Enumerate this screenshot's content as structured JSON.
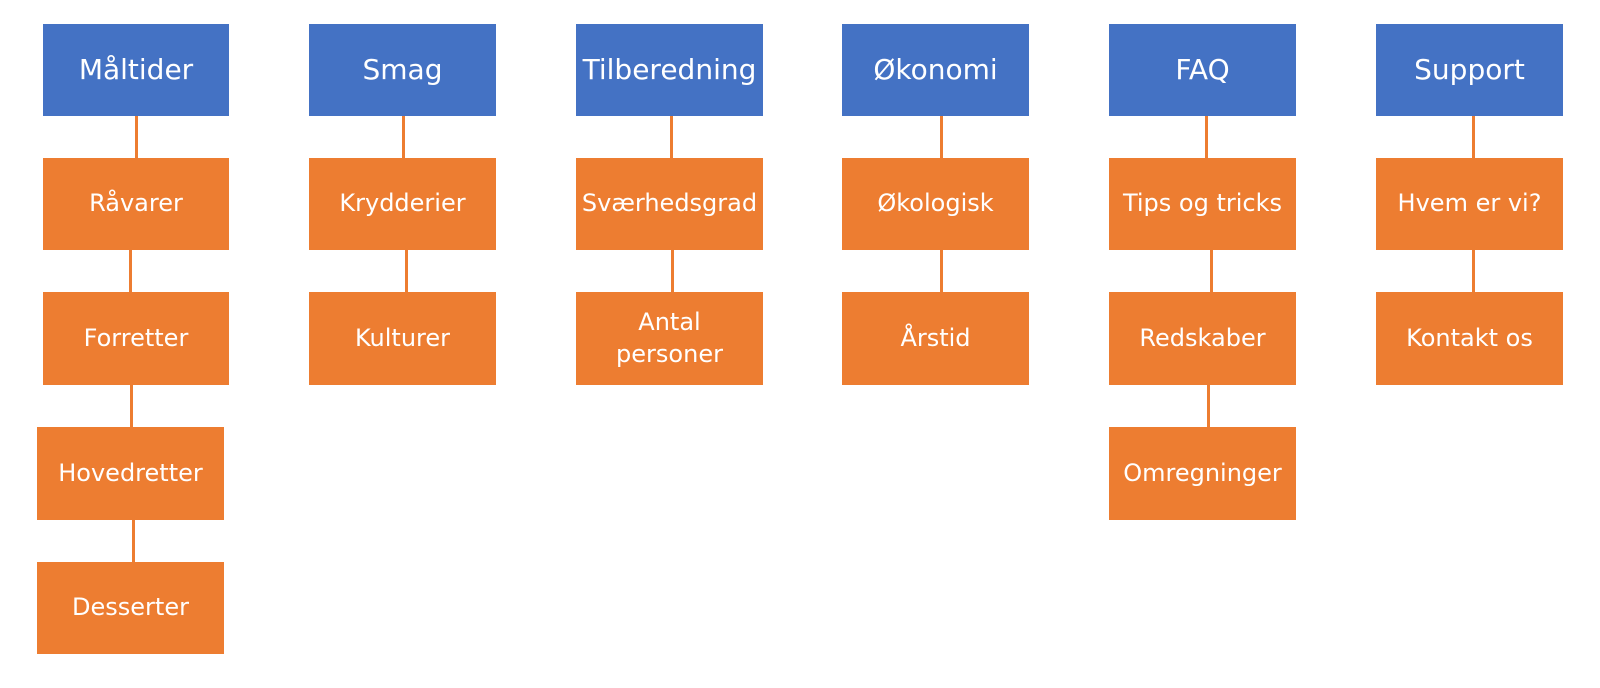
{
  "colors": {
    "header_fill": "#4472c4",
    "item_fill": "#ed7d31",
    "connector": "#ed7d31",
    "text": "#ffffff",
    "background": "#ffffff"
  },
  "columns": [
    {
      "header": "Måltider",
      "items": [
        "Råvarer",
        "Forretter",
        "Hovedretter",
        "Desserter"
      ]
    },
    {
      "header": "Smag",
      "items": [
        "Krydderier",
        "Kulturer"
      ]
    },
    {
      "header": "Tilberedning",
      "items": [
        "Sværhedsgrad",
        "Antal personer"
      ]
    },
    {
      "header": "Økonomi",
      "items": [
        "Økologisk",
        "Årstid"
      ]
    },
    {
      "header": "FAQ",
      "items": [
        "Tips og tricks",
        "Redskaber",
        "Omregninger"
      ]
    },
    {
      "header": "Support",
      "items": [
        "Hvem er vi?",
        "Kontakt os"
      ]
    }
  ]
}
